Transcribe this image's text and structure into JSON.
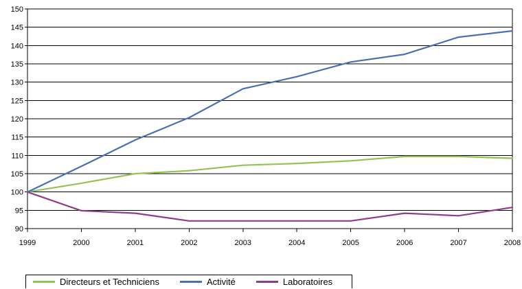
{
  "chart_data": {
    "type": "line",
    "title": "",
    "xlabel": "",
    "ylabel": "",
    "x": [
      "1999",
      "2000",
      "2001",
      "2002",
      "2003",
      "2004",
      "2005",
      "2006",
      "2007",
      "2008"
    ],
    "ylim": [
      90,
      150
    ],
    "yticks": [
      90,
      95,
      100,
      105,
      110,
      115,
      120,
      125,
      130,
      135,
      140,
      145,
      150
    ],
    "grid": "horizontal",
    "legend_position": "bottom",
    "series": [
      {
        "name": "Directeurs et Techniciens",
        "color": "#92c353",
        "values": [
          100,
          102.4,
          105.0,
          105.8,
          107.3,
          107.8,
          108.5,
          109.7,
          109.7,
          109.2
        ]
      },
      {
        "name": "Activité",
        "color": "#4a6eb5",
        "values": [
          100,
          107,
          114.2,
          120.3,
          128.2,
          131.5,
          135.5,
          137.6,
          142.3,
          144
        ]
      },
      {
        "name": "Laboratoires",
        "color": "#8e3b8c",
        "values": [
          100,
          94.9,
          94.2,
          92.1,
          92.1,
          92.1,
          92.1,
          94.2,
          93.5,
          95.8
        ]
      }
    ]
  },
  "legend": {
    "items": [
      {
        "label": "Directeurs et Techniciens",
        "color": "#92c353"
      },
      {
        "label": "Activité",
        "color": "#4a6eb5"
      },
      {
        "label": "Laboratoires",
        "color": "#8e3b8c"
      }
    ]
  }
}
